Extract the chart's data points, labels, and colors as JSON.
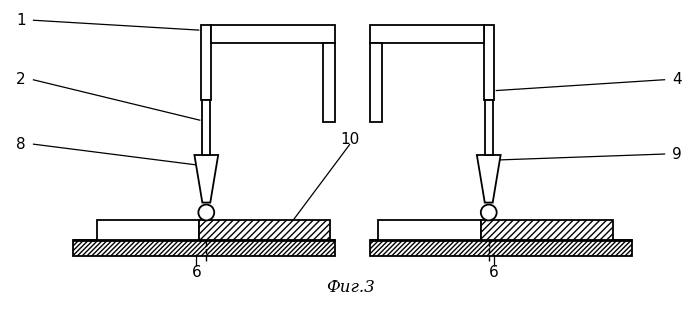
{
  "title": "Фиг.3",
  "background_color": "#ffffff",
  "fig_width": 7.0,
  "fig_height": 3.09,
  "dpi": 100
}
